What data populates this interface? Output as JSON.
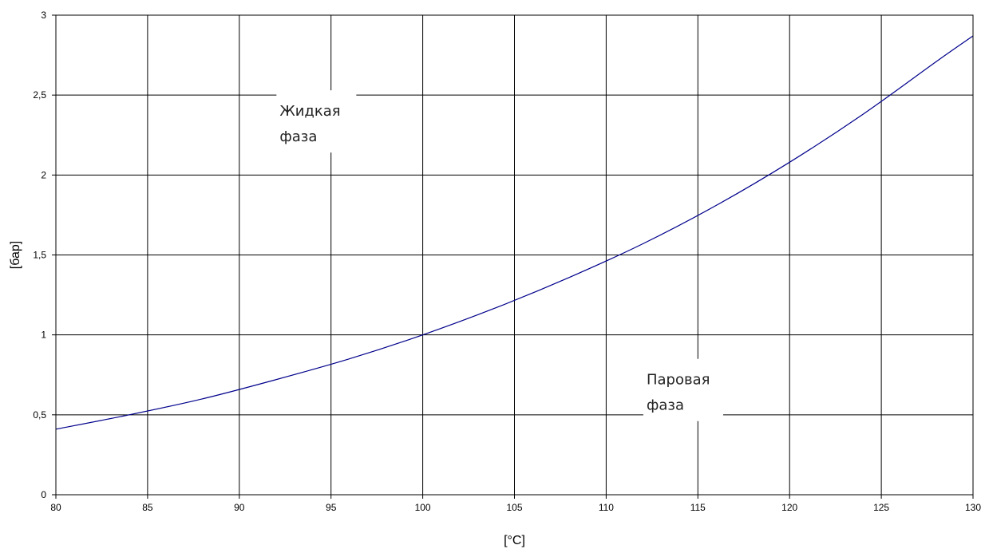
{
  "chart_data": {
    "type": "line",
    "xlabel": "[°C]",
    "ylabel": "[бар]",
    "xlim": [
      80,
      130
    ],
    "ylim": [
      0,
      3
    ],
    "x_ticks": [
      "80",
      "85",
      "90",
      "95",
      "100",
      "105",
      "110",
      "115",
      "120",
      "125",
      "130"
    ],
    "y_ticks": [
      "0",
      "0,5",
      "1",
      "1,5",
      "2",
      "2,5",
      "3"
    ],
    "grid": true,
    "legend": "none",
    "series": [
      {
        "color": "#00008B",
        "x": [
          80,
          84,
          88,
          92,
          96,
          100,
          104,
          108,
          112,
          116,
          120,
          124,
          128,
          130
        ],
        "y": [
          0.41,
          0.5,
          0.6,
          0.72,
          0.85,
          1.0,
          1.17,
          1.36,
          1.57,
          1.81,
          2.08,
          2.38,
          2.71,
          2.87
        ]
      }
    ],
    "annotations": [
      {
        "lines": [
          "Жидкая",
          "фаза"
        ],
        "x": 92.2,
        "y": 2.5
      },
      {
        "lines": [
          "Паровая",
          "фаза"
        ],
        "x": 112.2,
        "y": 0.82
      }
    ]
  }
}
